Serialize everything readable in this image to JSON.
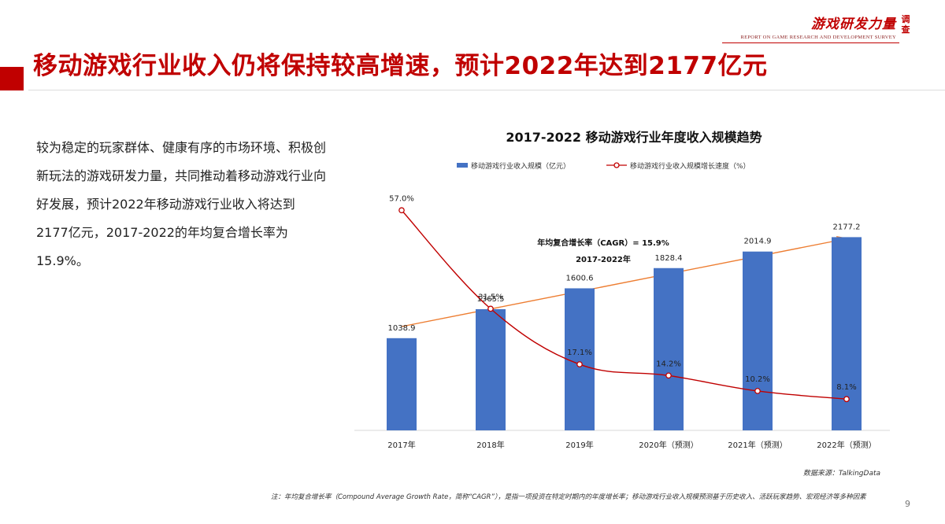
{
  "brand": {
    "name": "游戏研发力量",
    "subtitle": "REPORT ON GAME RESEARCH AND DEVELOPMENT SURVEY",
    "side": "调查"
  },
  "slide": {
    "title": "移动游戏行业收入仍将保持较高增速，预计2022年达到2177亿元",
    "description": "较为稳定的玩家群体、健康有序的市场环境、积极创新玩法的游戏研发力量，共同推动着移动游戏行业向好发展，预计2022年移动游戏行业收入将达到2177亿元，2017-2022的年均复合增长率为15.9%。",
    "source": "数据来源：TalkingData",
    "note": "注：年均复合增长率（Compound Average Growth Rate，简称“CAGR”），是指一项投资在特定时期内的年度增长率；移动游戏行业收入规模预测基于历史收入、活跃玩家趋势、宏观经济等多种因素",
    "page_number": "9"
  },
  "chart_data": {
    "type": "bar",
    "title": "2017-2022  移动游戏行业年度收入规模趋势",
    "categories": [
      "2017年",
      "2018年",
      "2019年",
      "2020年（预测）",
      "2021年（预测）",
      "2022年（预测）"
    ],
    "series": [
      {
        "name": "移动游戏行业收入规模（亿元）",
        "type": "bar",
        "values": [
          1038.9,
          1365.5,
          1600.6,
          1828.4,
          2014.9,
          2177.2
        ],
        "labels": [
          "1038.9",
          "1365.5",
          "1600.6",
          "1828.4",
          "2014.9",
          "2177.2"
        ],
        "color": "#4472c4"
      },
      {
        "name": "移动游戏行业收入规模增长速度（%）",
        "type": "line",
        "values": [
          57.0,
          31.5,
          17.1,
          14.2,
          10.2,
          8.1
        ],
        "labels": [
          "57.0%",
          "31.5%",
          "17.1%",
          "14.2%",
          "10.2%",
          "8.1%"
        ],
        "color": "#c00000"
      }
    ],
    "bar_ylim": [
      0,
      2500
    ],
    "line_ylim": [
      0,
      65
    ],
    "legend_position": "top",
    "grid": false,
    "annotation": {
      "line1": "年均复合增长率（CAGR）= 15.9%",
      "line2": "2017-2022年",
      "arrow_color": "#ed7d31"
    }
  }
}
